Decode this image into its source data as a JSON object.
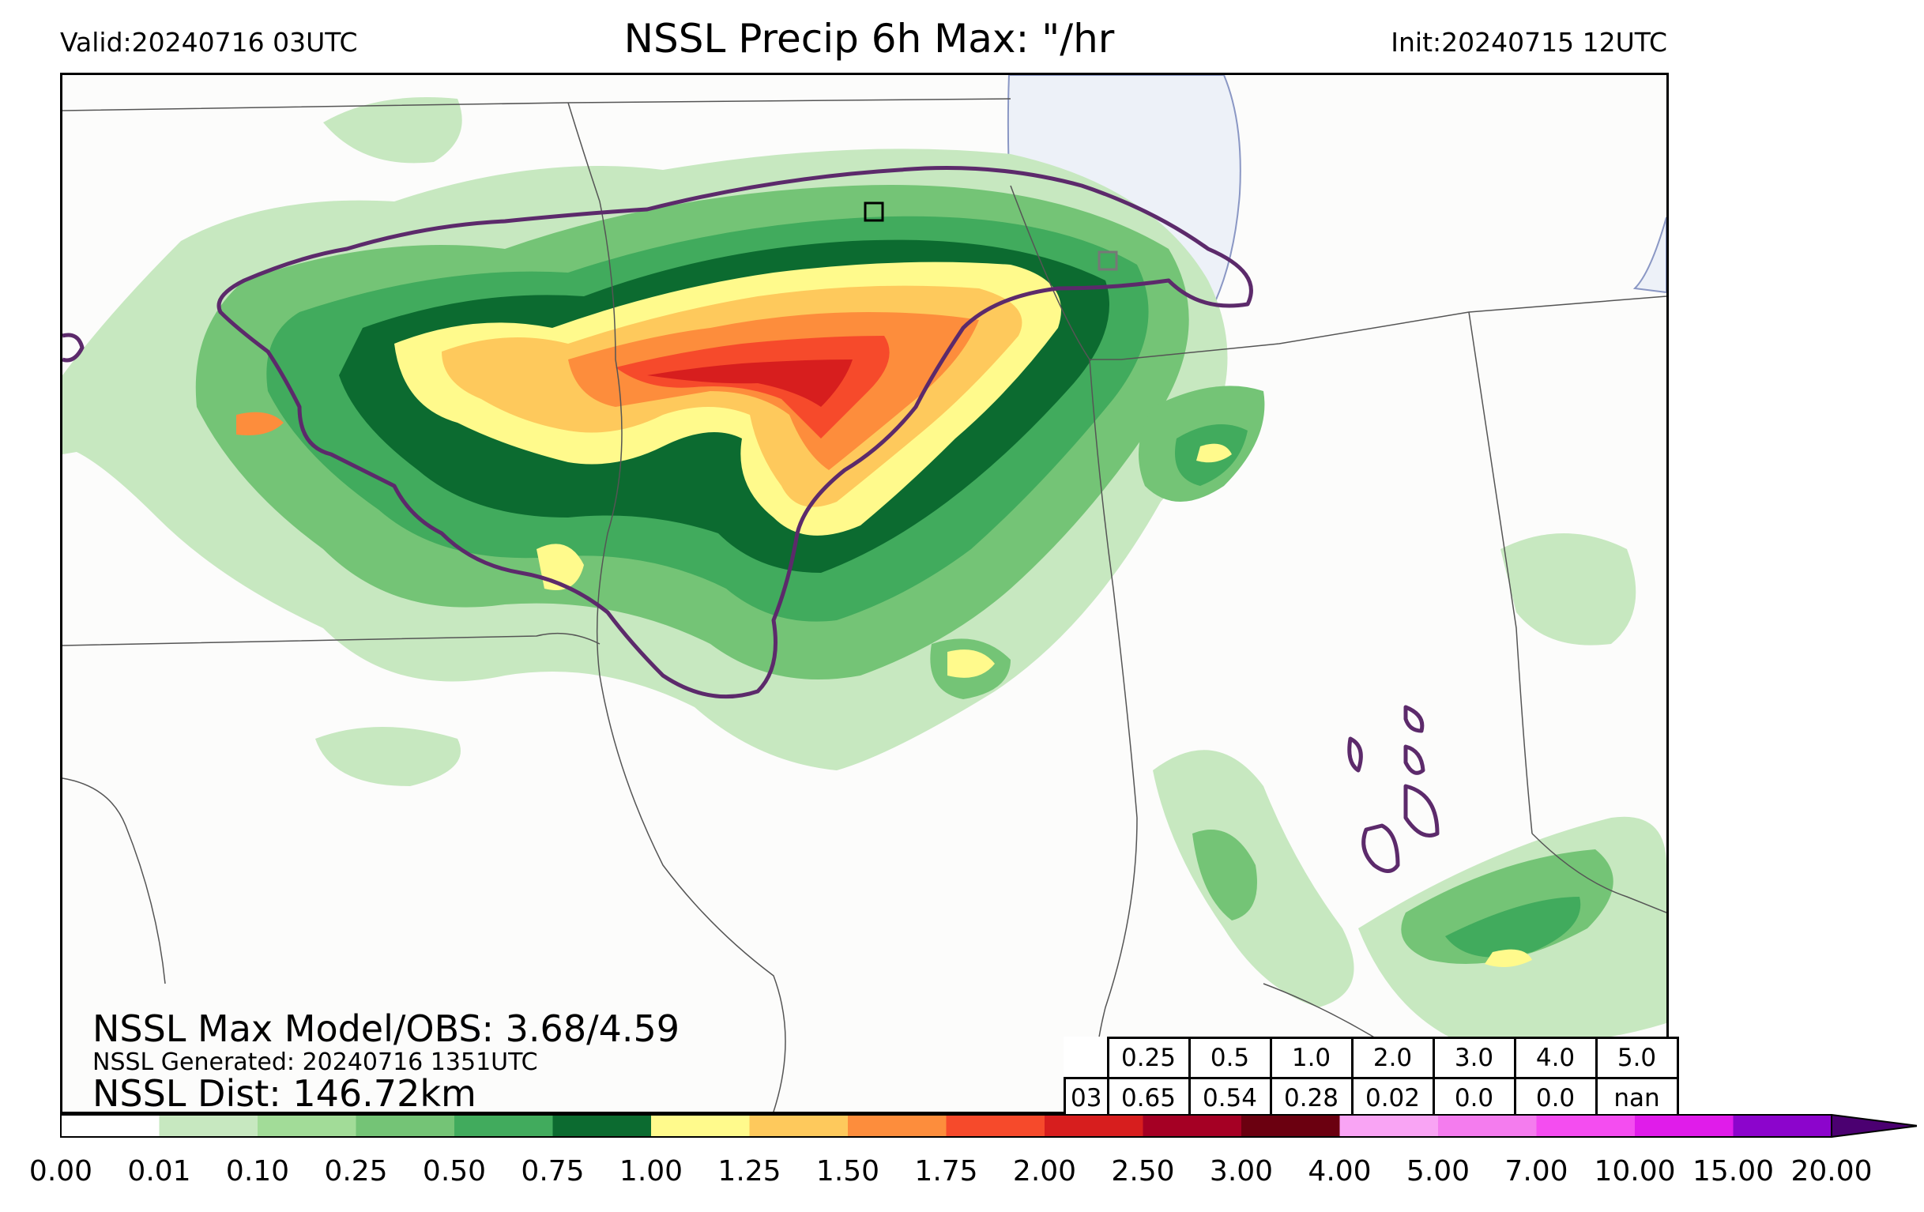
{
  "header": {
    "valid": "Valid:20240716 03UTC",
    "title": "NSSL Precip 6h Max: \"/hr",
    "init": "Init:20240715 12UTC"
  },
  "stats": {
    "max_model_obs": "NSSL Max Model/OBS: 3.68/4.59",
    "generated": "NSSL Generated: 20240716 1351UTC",
    "distance": "NSSL Dist: 146.72km"
  },
  "table": {
    "thresholds": [
      "0.25",
      "0.5",
      "1.0",
      "2.0",
      "3.0",
      "4.0",
      "5.0"
    ],
    "row_label": "03",
    "values": [
      "0.65",
      "0.54",
      "0.28",
      "0.02",
      "0.0",
      "0.0",
      "nan"
    ]
  },
  "colorbar": {
    "ticks": [
      "0.00",
      "0.01",
      "0.10",
      "0.25",
      "0.50",
      "0.75",
      "1.00",
      "1.25",
      "1.50",
      "1.75",
      "2.00",
      "2.50",
      "3.00",
      "4.00",
      "5.00",
      "7.00",
      "10.00",
      "15.00",
      "20.00"
    ],
    "colors": [
      "#ffffff",
      "#c7e8c0",
      "#a2dc98",
      "#74c476",
      "#41ab5d",
      "#0c6b30",
      "#fffa8c",
      "#fec95c",
      "#fd8d3c",
      "#f64a2b",
      "#d71e1e",
      "#a50024",
      "#6b0010",
      "#f9a4f4",
      "#f47cee",
      "#f44df0",
      "#e01cea",
      "#8c05cc"
    ],
    "extend_color": "#4b0071"
  },
  "map_colors": {
    "lake": "#edf1f8",
    "obs_contour": "#5c2a6b",
    "border": "#555555"
  }
}
